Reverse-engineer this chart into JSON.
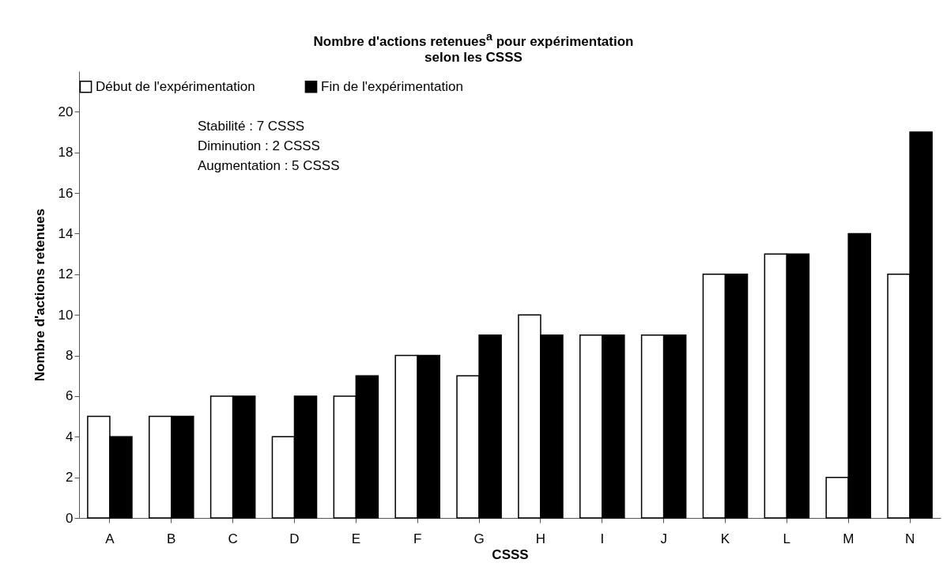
{
  "chart_data": {
    "type": "bar",
    "title": "Nombre d'actions retenues$^{a}$ pour expérimentation\nselon les CSSS",
    "xlabel": "CSSS",
    "ylabel": "Nombre d'actions retenues",
    "categories": [
      "A",
      "B",
      "C",
      "D",
      "E",
      "F",
      "G",
      "H",
      "I",
      "J",
      "K",
      "L",
      "M",
      "N"
    ],
    "series": [
      {
        "name": "Début de l'expérimentation",
        "color": "#ffffff",
        "values": [
          5,
          5,
          6,
          4,
          6,
          8,
          7,
          10,
          9,
          9,
          12,
          13,
          2,
          12
        ]
      },
      {
        "name": "Fin de l'expérimentation",
        "color": "#000000",
        "values": [
          4,
          5,
          6,
          6,
          7,
          8,
          9,
          9,
          9,
          9,
          12,
          13,
          14,
          19
        ]
      }
    ],
    "ylim": [
      0,
      22
    ],
    "yticks": [
      0,
      2,
      4,
      6,
      8,
      10,
      12,
      14,
      16,
      18,
      20
    ],
    "grid": false,
    "legend": "top",
    "annotations": [
      "Stabilité : 7 CSSS",
      "Diminution : 2 CSSS",
      "Augmentation : 5 CSSS"
    ]
  }
}
